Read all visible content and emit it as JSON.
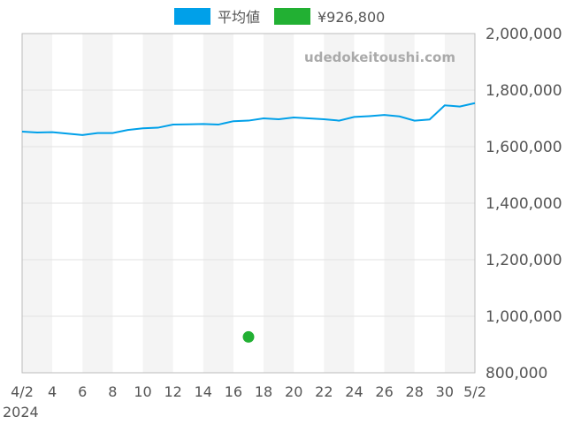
{
  "chart_data": {
    "type": "line",
    "title": "",
    "watermark": "udedokeitoushi.com",
    "year_label": "2024",
    "legend": [
      {
        "name": "平均値",
        "color": "#00a0e9"
      },
      {
        "name": "¥926,800",
        "color": "#22b033"
      }
    ],
    "legend_placement": "top-center",
    "x_tick_labels": [
      "4/2",
      "4",
      "6",
      "8",
      "10",
      "12",
      "14",
      "16",
      "18",
      "20",
      "22",
      "24",
      "26",
      "28",
      "30",
      "5/2"
    ],
    "x_dates": [
      "4/2",
      "4/3",
      "4/4",
      "4/5",
      "4/6",
      "4/7",
      "4/8",
      "4/9",
      "4/10",
      "4/11",
      "4/12",
      "4/13",
      "4/14",
      "4/15",
      "4/16",
      "4/17",
      "4/18",
      "4/19",
      "4/20",
      "4/21",
      "4/22",
      "4/23",
      "4/24",
      "4/25",
      "4/26",
      "4/27",
      "4/28",
      "4/29",
      "4/30",
      "5/1",
      "5/2"
    ],
    "ylim": [
      800000,
      2000000
    ],
    "y_ticks": [
      800000,
      1000000,
      1200000,
      1400000,
      1600000,
      1800000,
      2000000
    ],
    "y_tick_labels": [
      "800,000",
      "1,000,000",
      "1,200,000",
      "1,400,000",
      "1,600,000",
      "1,800,000",
      "2,000,000"
    ],
    "grid": true,
    "series": [
      {
        "name": "平均値",
        "color": "#00a0e9",
        "values": [
          1653000,
          1650000,
          1651000,
          1646000,
          1641000,
          1648000,
          1648000,
          1659000,
          1665000,
          1667000,
          1678000,
          1679000,
          1680000,
          1678000,
          1690000,
          1692000,
          1700000,
          1697000,
          1703000,
          1700000,
          1697000,
          1692000,
          1705000,
          1708000,
          1712000,
          1707000,
          1692000,
          1696000,
          1746000,
          1742000,
          1754000
        ]
      },
      {
        "name": "¥926,800",
        "color": "#22b033",
        "type": "scatter",
        "points": [
          {
            "x_index": 15,
            "value": 926800
          }
        ]
      }
    ]
  }
}
